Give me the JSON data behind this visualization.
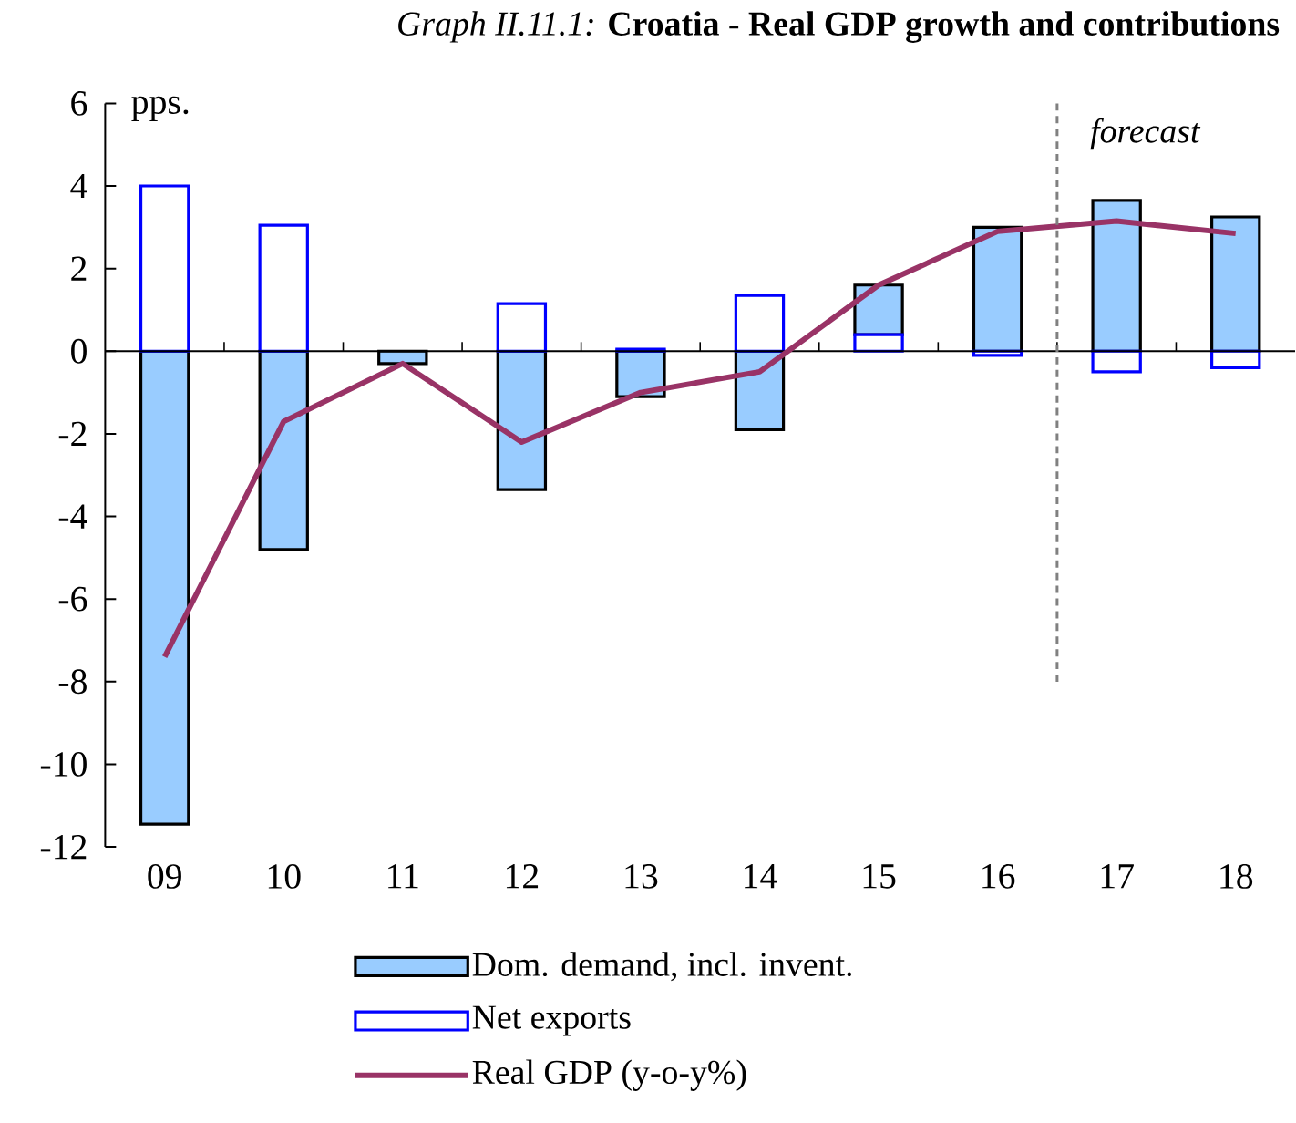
{
  "chart_data": {
    "type": "bar",
    "title": "*Graph II.11.1:* **Croatia - Real GDP growth and contributions**",
    "ylabel": "pps.",
    "categories": [
      "09",
      "10",
      "11",
      "12",
      "13",
      "14",
      "15",
      "16",
      "17",
      "18"
    ],
    "stacked": true,
    "series": [
      {
        "name": "Net exports",
        "color": "#0000ff",
        "values": [
          4.0,
          3.05,
          null,
          1.15,
          0.05,
          1.35,
          0.4,
          -0.1,
          -0.5,
          -0.4
        ]
      },
      {
        "name": "Dom. demand, incl. invent.",
        "color": "#99ccff",
        "values": [
          -11.45,
          -4.8,
          -0.3,
          -3.35,
          -1.1,
          -1.9,
          1.2,
          3.0,
          3.65,
          3.25
        ]
      },
      {
        "name": "Real GDP (y-o-y%)",
        "type": "line",
        "color": "#993366",
        "values": [
          -7.4,
          -1.7,
          -0.3,
          -2.2,
          -1.0,
          -0.5,
          1.6,
          2.9,
          3.15,
          2.85
        ]
      }
    ],
    "ylim": [
      -12,
      6
    ],
    "yticks": [
      -12,
      -10,
      -8,
      -6,
      -4,
      -2,
      0,
      2,
      4,
      6
    ],
    "annotations": [
      "forecast"
    ],
    "legend": "bottom",
    "grid": false
  }
}
